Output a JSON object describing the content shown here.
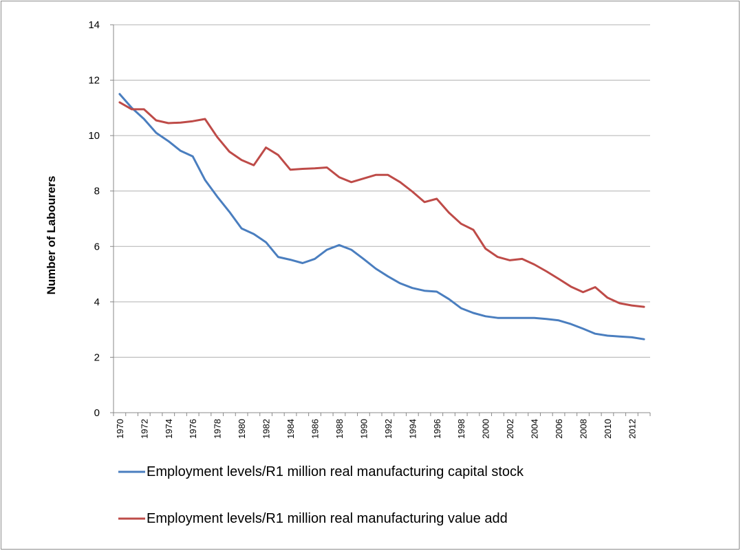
{
  "chart_data": {
    "type": "line",
    "title": "",
    "xlabel": "",
    "ylabel": "Number of Labourers",
    "ylim": [
      0,
      14
    ],
    "yticks": [
      0,
      2,
      4,
      6,
      8,
      10,
      12,
      14
    ],
    "grid": "horizontal",
    "legend_position": "bottom",
    "x": [
      1970,
      1971,
      1972,
      1973,
      1974,
      1975,
      1976,
      1977,
      1978,
      1979,
      1980,
      1981,
      1982,
      1983,
      1984,
      1985,
      1986,
      1987,
      1988,
      1989,
      1990,
      1991,
      1992,
      1993,
      1994,
      1995,
      1996,
      1997,
      1998,
      1999,
      2000,
      2001,
      2002,
      2003,
      2004,
      2005,
      2006,
      2007,
      2008,
      2009,
      2010,
      2011,
      2012,
      2013
    ],
    "x_tick_labels": [
      "1970",
      "1972",
      "1974",
      "1976",
      "1978",
      "1980",
      "1982",
      "1984",
      "1986",
      "1988",
      "1990",
      "1992",
      "1994",
      "1996",
      "1998",
      "2000",
      "2002",
      "2004",
      "2006",
      "2008",
      "2010",
      "2012"
    ],
    "series": [
      {
        "name": "Employment levels/R1 million real manufacturing capital stock",
        "color": "#4a7ebf",
        "values": [
          11.5,
          11.0,
          10.6,
          10.1,
          9.8,
          9.45,
          9.25,
          8.4,
          7.8,
          7.25,
          6.65,
          6.45,
          6.15,
          5.62,
          5.52,
          5.4,
          5.55,
          5.88,
          6.05,
          5.88,
          5.55,
          5.2,
          4.92,
          4.67,
          4.5,
          4.4,
          4.37,
          4.1,
          3.77,
          3.6,
          3.48,
          3.42,
          3.42,
          3.42,
          3.42,
          3.38,
          3.33,
          3.2,
          3.03,
          2.85,
          2.78,
          2.75,
          2.72,
          2.65
        ]
      },
      {
        "name": "Employment levels/R1 million real manufacturing value add",
        "color": "#be4b48",
        "values": [
          11.2,
          10.95,
          10.95,
          10.55,
          10.45,
          10.47,
          10.52,
          10.6,
          9.95,
          9.42,
          9.12,
          8.93,
          9.57,
          9.3,
          8.77,
          8.8,
          8.82,
          8.85,
          8.5,
          8.32,
          8.45,
          8.58,
          8.58,
          8.32,
          7.98,
          7.6,
          7.72,
          7.22,
          6.82,
          6.6,
          5.92,
          5.62,
          5.5,
          5.55,
          5.35,
          5.1,
          4.83,
          4.55,
          4.35,
          4.53,
          4.15,
          3.95,
          3.87,
          3.82
        ]
      }
    ]
  }
}
